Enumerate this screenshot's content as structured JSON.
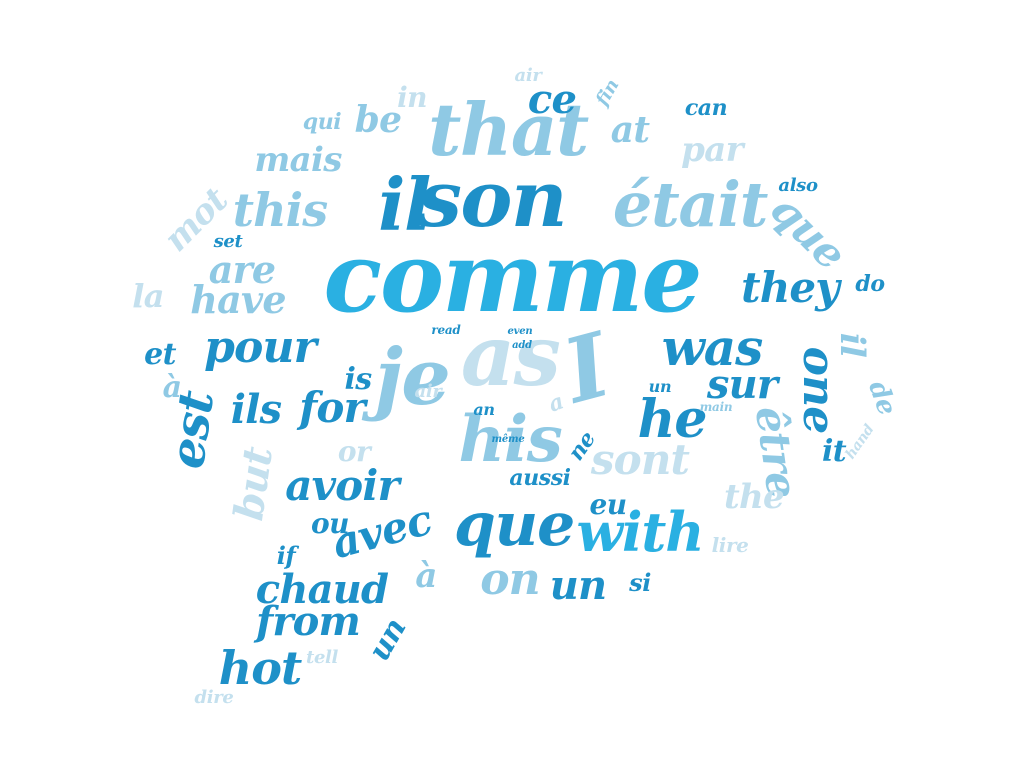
{
  "palette": {
    "dark": "#1e90c8",
    "mid": "#2ab0e2",
    "light": "#8fc9e4",
    "pale": "#c4e0ee"
  },
  "words": [
    {
      "text": "comme",
      "tone": "mid"
    },
    {
      "text": "son",
      "tone": "dark"
    },
    {
      "text": "il",
      "tone": "dark"
    },
    {
      "text": "that",
      "tone": "light"
    },
    {
      "text": "était",
      "tone": "light"
    },
    {
      "text": "as",
      "tone": "pale"
    },
    {
      "text": "je",
      "tone": "light"
    },
    {
      "text": "I",
      "tone": "light"
    },
    {
      "text": "his",
      "tone": "light"
    },
    {
      "text": "que",
      "tone": "dark"
    },
    {
      "text": "with",
      "tone": "mid"
    },
    {
      "text": "he",
      "tone": "dark"
    },
    {
      "text": "was",
      "tone": "dark"
    },
    {
      "text": "they",
      "tone": "dark"
    },
    {
      "text": "pour",
      "tone": "dark"
    },
    {
      "text": "ils",
      "tone": "dark"
    },
    {
      "text": "for",
      "tone": "dark"
    },
    {
      "text": "sur",
      "tone": "dark"
    },
    {
      "text": "sont",
      "tone": "pale"
    },
    {
      "text": "this",
      "tone": "light"
    },
    {
      "text": "ce",
      "tone": "dark"
    },
    {
      "text": "be",
      "tone": "light"
    },
    {
      "text": "at",
      "tone": "light"
    },
    {
      "text": "in",
      "tone": "pale"
    },
    {
      "text": "qui",
      "tone": "light"
    },
    {
      "text": "air",
      "tone": "pale"
    },
    {
      "text": "fin",
      "tone": "light"
    },
    {
      "text": "can",
      "tone": "dark"
    },
    {
      "text": "par",
      "tone": "pale"
    },
    {
      "text": "mais",
      "tone": "light"
    },
    {
      "text": "also",
      "tone": "dark"
    },
    {
      "text": "mot",
      "tone": "pale"
    },
    {
      "text": "que",
      "tone": "light"
    },
    {
      "text": "set",
      "tone": "dark"
    },
    {
      "text": "are",
      "tone": "light"
    },
    {
      "text": "have",
      "tone": "light"
    },
    {
      "text": "la",
      "tone": "pale"
    },
    {
      "text": "do",
      "tone": "dark"
    },
    {
      "text": "et",
      "tone": "dark"
    },
    {
      "text": "il",
      "tone": "light"
    },
    {
      "text": "one",
      "tone": "dark"
    },
    {
      "text": "à",
      "tone": "light"
    },
    {
      "text": "is",
      "tone": "dark"
    },
    {
      "text": "de",
      "tone": "light"
    },
    {
      "text": "read",
      "tone": "dark"
    },
    {
      "text": "even",
      "tone": "dark"
    },
    {
      "text": "add",
      "tone": "dark"
    },
    {
      "text": "air",
      "tone": "pale"
    },
    {
      "text": "an",
      "tone": "dark"
    },
    {
      "text": "un",
      "tone": "dark"
    },
    {
      "text": "main",
      "tone": "light"
    },
    {
      "text": "a",
      "tone": "pale"
    },
    {
      "text": "hand",
      "tone": "pale"
    },
    {
      "text": "it",
      "tone": "dark"
    },
    {
      "text": "est",
      "tone": "dark"
    },
    {
      "text": "or",
      "tone": "pale"
    },
    {
      "text": "même",
      "tone": "dark"
    },
    {
      "text": "ne",
      "tone": "dark"
    },
    {
      "text": "être",
      "tone": "light"
    },
    {
      "text": "but",
      "tone": "pale"
    },
    {
      "text": "avoir",
      "tone": "dark"
    },
    {
      "text": "aussi",
      "tone": "dark"
    },
    {
      "text": "eu",
      "tone": "dark"
    },
    {
      "text": "the",
      "tone": "pale"
    },
    {
      "text": "ou",
      "tone": "dark"
    },
    {
      "text": "if",
      "tone": "dark"
    },
    {
      "text": "avec",
      "tone": "dark"
    },
    {
      "text": "lire",
      "tone": "pale"
    },
    {
      "text": "chaud",
      "tone": "dark"
    },
    {
      "text": "à",
      "tone": "light"
    },
    {
      "text": "on",
      "tone": "light"
    },
    {
      "text": "un",
      "tone": "dark"
    },
    {
      "text": "si",
      "tone": "dark"
    },
    {
      "text": "from",
      "tone": "dark"
    },
    {
      "text": "un",
      "tone": "dark"
    },
    {
      "text": "hot",
      "tone": "dark"
    },
    {
      "text": "tell",
      "tone": "pale"
    },
    {
      "text": "dire",
      "tone": "pale"
    }
  ]
}
